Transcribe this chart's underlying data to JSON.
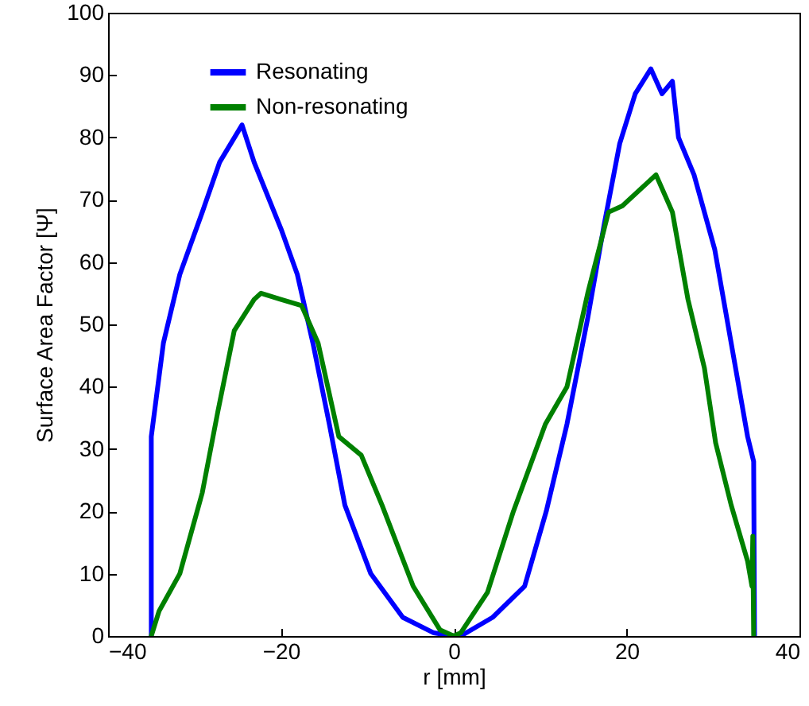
{
  "chart_data": {
    "type": "line",
    "xlabel": "r [mm]",
    "ylabel": "Surface Area Factor [Ψ]",
    "xlim": [
      -40,
      40
    ],
    "ylim": [
      0,
      100
    ],
    "xticks": [
      -40,
      -20,
      0,
      20,
      40
    ],
    "yticks": [
      0,
      10,
      20,
      30,
      40,
      50,
      60,
      70,
      80,
      90,
      100
    ],
    "grid": false,
    "legend": "top left",
    "line_style": "solid",
    "marker": "none",
    "series": [
      {
        "name": "Resonating",
        "color": "#0000ff",
        "x": [
          -35,
          -35,
          -33.6,
          -31.7,
          -29.1,
          -27.1,
          -24.5,
          -23.1,
          -19.9,
          -18.1,
          -16.3,
          -14.4,
          -12.6,
          -9.6,
          -5.9,
          -2.3,
          0,
          0.8,
          4.5,
          8.2,
          10.7,
          13.1,
          15.5,
          17.4,
          19.2,
          21,
          22.8,
          24.1,
          25.3,
          26,
          27.8,
          30.2,
          32.1,
          34,
          34.7,
          34.8
        ],
        "values": [
          0,
          32,
          47,
          58,
          68,
          76,
          82,
          76,
          65,
          58,
          47,
          34,
          21,
          10,
          3,
          0.5,
          0,
          0,
          3,
          8,
          20,
          34,
          51,
          66,
          79,
          87,
          91,
          87,
          89,
          80,
          74,
          62,
          47,
          32,
          28,
          0
        ]
      },
      {
        "name": "Non-resonating",
        "color": "#008000",
        "x": [
          -35,
          -34.1,
          -31.7,
          -29.1,
          -27.3,
          -25.4,
          -23.1,
          -22.3,
          -20,
          -17.6,
          -15.7,
          -13.3,
          -10.7,
          -8.3,
          -4.7,
          -1.6,
          0,
          0.8,
          3.9,
          6.9,
          10.6,
          13.1,
          15.5,
          17.9,
          19.5,
          23.4,
          25.3,
          27.1,
          29,
          30.3,
          32.1,
          34,
          34.5,
          34.6,
          34.7
        ],
        "values": [
          0,
          4,
          10,
          23,
          36,
          49,
          54,
          55,
          54,
          53,
          47,
          32,
          29,
          21,
          8,
          1,
          0,
          0.5,
          7,
          20,
          34,
          40,
          55,
          68,
          69,
          74,
          68,
          54,
          43,
          31,
          21,
          12,
          8,
          16,
          0
        ]
      }
    ]
  }
}
